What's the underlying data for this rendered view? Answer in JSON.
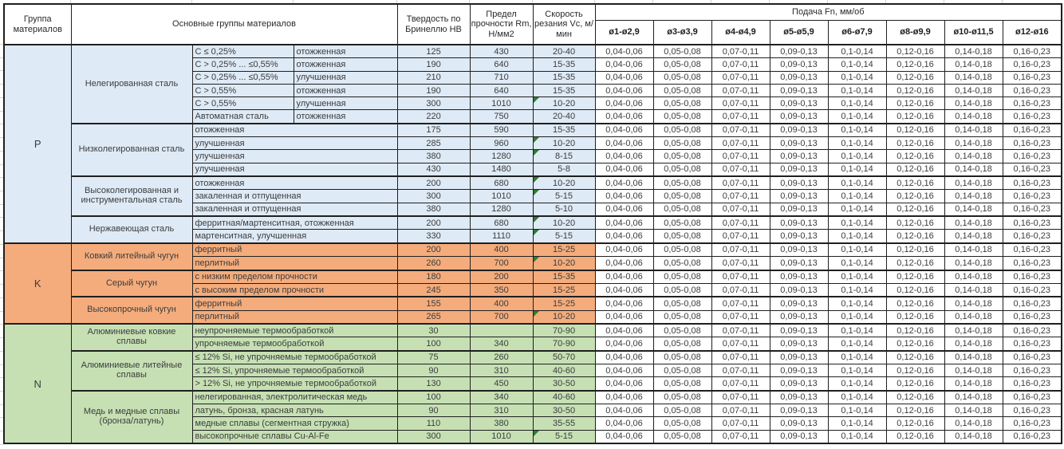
{
  "header": {
    "col_group": "Группа материалов",
    "col_main": "Основные группы материалов",
    "col_hardness": "Твердость по Бринеллю HB",
    "col_strength": "Предел прочности Rm, Н/мм2",
    "col_speed": "Скорость резания Vc, м/мин",
    "col_feed": "Подача Fn, мм/об",
    "diameters": [
      "ø1-ø2,9",
      "ø3-ø3,9",
      "ø4-ø4,9",
      "ø5-ø5,9",
      "ø6-ø7,9",
      "ø8-ø9,9",
      "ø10-ø11,5",
      "ø12-ø16"
    ]
  },
  "colors": {
    "group_P": "#DEEAF6",
    "group_K": "#F4AC7C",
    "group_N": "#C6E0B4",
    "comment_marker": "#2E7D32",
    "border": "#1F1F1F"
  },
  "feed_values": [
    "0,04-0,06",
    "0,05-0,08",
    "0,07-0,11",
    "0,09-0,13",
    "0,1-0,14",
    "0,12-0,16",
    "0,14-0,18",
    "0,16-0,23"
  ],
  "rows": [
    {
      "g": "P",
      "letter": "P",
      "lspan": 15,
      "group": "Нелегированная сталь",
      "gspan": 6,
      "desc": [
        "C ≤ 0,25%",
        "отожженная"
      ],
      "hb": "125",
      "rm": "430",
      "vc": "20-40",
      "m": false,
      "start": "grp"
    },
    {
      "g": "P",
      "desc": [
        "C > 0,25% ... ≤0,55%",
        "отожженная"
      ],
      "hb": "190",
      "rm": "640",
      "vc": "15-35",
      "m": false,
      "start": ""
    },
    {
      "g": "P",
      "desc": [
        "C > 0,25% ... ≤0,55%",
        "улучшенная"
      ],
      "hb": "210",
      "rm": "710",
      "vc": "15-35",
      "m": false,
      "start": ""
    },
    {
      "g": "P",
      "desc": [
        "C > 0,55%",
        "отожженная"
      ],
      "hb": "190",
      "rm": "640",
      "vc": "15-35",
      "m": false,
      "start": ""
    },
    {
      "g": "P",
      "desc": [
        "C > 0,55%",
        "улучшенная"
      ],
      "hb": "300",
      "rm": "1010",
      "vc": "10-20",
      "m": true,
      "start": ""
    },
    {
      "g": "P",
      "desc": [
        "Автоматная сталь",
        "отожженная"
      ],
      "hb": "220",
      "rm": "750",
      "vc": "20-40",
      "m": false,
      "start": ""
    },
    {
      "g": "P",
      "group": "Низколегированная сталь",
      "gspan": 4,
      "desc": [
        "отожженная"
      ],
      "hb": "175",
      "rm": "590",
      "vc": "15-35",
      "m": false,
      "start": "sub"
    },
    {
      "g": "P",
      "desc": [
        "улучшенная"
      ],
      "hb": "285",
      "rm": "960",
      "vc": "10-20",
      "m": true,
      "start": ""
    },
    {
      "g": "P",
      "desc": [
        "улучшенная"
      ],
      "hb": "380",
      "rm": "1280",
      "vc": "8-15",
      "m": true,
      "start": ""
    },
    {
      "g": "P",
      "desc": [
        "улучшенная"
      ],
      "hb": "430",
      "rm": "1480",
      "vc": "5-8",
      "m": false,
      "start": ""
    },
    {
      "g": "P",
      "group": "Высоколегированная и инструментальная сталь",
      "gspan": 3,
      "desc": [
        "отожженная"
      ],
      "hb": "200",
      "rm": "680",
      "vc": "10-20",
      "m": true,
      "start": "sub"
    },
    {
      "g": "P",
      "desc": [
        "закаленная и отпущенная"
      ],
      "hb": "300",
      "rm": "1010",
      "vc": "5-15",
      "m": true,
      "start": ""
    },
    {
      "g": "P",
      "desc": [
        "закаленная и отпущенная"
      ],
      "hb": "380",
      "rm": "1280",
      "vc": "5-10",
      "m": false,
      "start": ""
    },
    {
      "g": "P",
      "group": "Нержавеющая сталь",
      "gspan": 2,
      "desc": [
        "ферритная/мартенситная, отожженная"
      ],
      "hb": "200",
      "rm": "680",
      "vc": "10-20",
      "m": true,
      "start": "sub"
    },
    {
      "g": "P",
      "desc": [
        "мартенситная, улучшенная"
      ],
      "hb": "330",
      "rm": "1110",
      "vc": "5-15",
      "m": true,
      "start": ""
    },
    {
      "g": "K",
      "letter": "K",
      "lspan": 6,
      "group": "Ковкий литейный чугун",
      "gspan": 2,
      "desc": [
        "ферритный"
      ],
      "hb": "200",
      "rm": "400",
      "vc": "15-25",
      "m": false,
      "start": "grp"
    },
    {
      "g": "K",
      "desc": [
        "перлитный"
      ],
      "hb": "260",
      "rm": "700",
      "vc": "10-20",
      "m": true,
      "start": ""
    },
    {
      "g": "K",
      "group": "Серый чугун",
      "gspan": 2,
      "desc": [
        "с низким пределом прочности"
      ],
      "hb": "180",
      "rm": "200",
      "vc": "15-35",
      "m": false,
      "start": "sub"
    },
    {
      "g": "K",
      "desc": [
        "с высоким пределом прочности"
      ],
      "hb": "245",
      "rm": "350",
      "vc": "15-25",
      "m": false,
      "start": ""
    },
    {
      "g": "K",
      "group": "Высокопрочный чугун",
      "gspan": 2,
      "desc": [
        "ферритный"
      ],
      "hb": "155",
      "rm": "400",
      "vc": "15-25",
      "m": false,
      "start": "sub"
    },
    {
      "g": "K",
      "desc": [
        "перлитный"
      ],
      "hb": "265",
      "rm": "700",
      "vc": "10-20",
      "m": true,
      "start": ""
    },
    {
      "g": "N",
      "letter": "N",
      "lspan": 9,
      "group": "Алюминиевые ковкие сплавы",
      "gspan": 2,
      "desc": [
        "неупрочняемые термообработкой"
      ],
      "hb": "30",
      "rm": "",
      "vc": "70-90",
      "m": false,
      "start": "grp"
    },
    {
      "g": "N",
      "desc": [
        "упрочняемые термообработкой"
      ],
      "hb": "100",
      "rm": "340",
      "vc": "70-90",
      "m": false,
      "start": ""
    },
    {
      "g": "N",
      "group": "Алюминиевые литейные сплавы",
      "gspan": 3,
      "desc": [
        "≤ 12% Si, не упрочняемые термообработкой"
      ],
      "hb": "75",
      "rm": "260",
      "vc": "50-70",
      "m": false,
      "start": "sub"
    },
    {
      "g": "N",
      "desc": [
        "≤ 12% Si, упрочняемые термообработкой"
      ],
      "hb": "90",
      "rm": "310",
      "vc": "40-60",
      "m": false,
      "start": ""
    },
    {
      "g": "N",
      "desc": [
        "> 12% Si, не упрочняемые термообработкой"
      ],
      "hb": "130",
      "rm": "450",
      "vc": "30-50",
      "m": false,
      "start": ""
    },
    {
      "g": "N",
      "group": "Медь и медные сплавы (бронза/латунь)",
      "gspan": 4,
      "desc": [
        "нелегированная, электролитическая медь"
      ],
      "hb": "100",
      "rm": "340",
      "vc": "40-60",
      "m": false,
      "start": "sub"
    },
    {
      "g": "N",
      "desc": [
        "латунь, бронза, красная латунь"
      ],
      "hb": "90",
      "rm": "310",
      "vc": "30-50",
      "m": false,
      "start": ""
    },
    {
      "g": "N",
      "desc": [
        "медные сплавы (сегментная стружка)"
      ],
      "hb": "110",
      "rm": "380",
      "vc": "35-55",
      "m": false,
      "start": ""
    },
    {
      "g": "N",
      "desc": [
        "высокопрочные сплавы Cu-Al-Fe"
      ],
      "hb": "300",
      "rm": "1010",
      "vc": "5-15",
      "m": true,
      "start": ""
    }
  ]
}
